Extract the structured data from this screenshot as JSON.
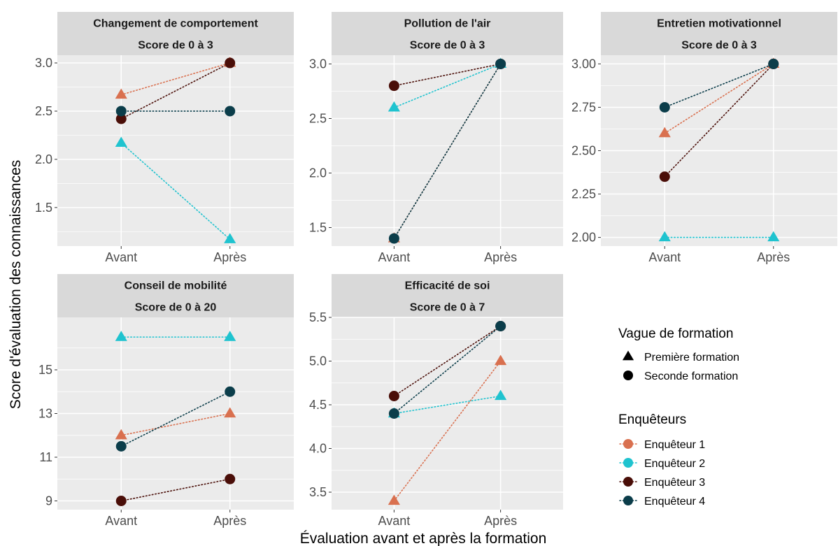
{
  "colors": {
    "Enquêteur 1": "#d9704f",
    "Enquêteur 2": "#1fc3cf",
    "Enquêteur 3": "#4a0e08",
    "Enquêteur 4": "#0b3d4a",
    "panel_background": "#ebebeb",
    "strip_background": "#d9d9d9",
    "grid": "#ffffff"
  },
  "chart_data": {
    "type": "line",
    "xlabel": "Évaluation avant et après la formation",
    "ylabel": "Score d'évaluation des connaissances",
    "categories": [
      "Avant",
      "Après"
    ],
    "grid": true,
    "legend_position": "right",
    "legends": [
      {
        "title": "Vague de formation",
        "items": [
          {
            "label": "Première formation",
            "shape": "triangle"
          },
          {
            "label": "Seconde formation",
            "shape": "circle"
          }
        ]
      },
      {
        "title": "Enquêteurs",
        "items": [
          {
            "label": "Enquêteur 1"
          },
          {
            "label": "Enquêteur 2"
          },
          {
            "label": "Enquêteur 3"
          },
          {
            "label": "Enquêteur 4"
          }
        ]
      }
    ],
    "panels": [
      {
        "title": "Changement de comportement",
        "subtitle": "Score de 0 à 3",
        "ylim": [
          1.1,
          3.08
        ],
        "yticks": [
          1.5,
          2.0,
          2.5,
          3.0
        ],
        "ytick_labels": [
          "1.5",
          "2.0",
          "2.5",
          "3.0"
        ],
        "series": [
          {
            "name": "Enquêteur 1",
            "shape": "triangle",
            "values": [
              2.67,
              3.0
            ]
          },
          {
            "name": "Enquêteur 2",
            "shape": "triangle",
            "values": [
              2.17,
              1.17
            ]
          },
          {
            "name": "Enquêteur 3",
            "shape": "circle",
            "values": [
              2.42,
              3.0
            ]
          },
          {
            "name": "Enquêteur 4",
            "shape": "circle",
            "values": [
              2.5,
              2.5
            ]
          }
        ]
      },
      {
        "title": "Pollution de l'air",
        "subtitle": "Score de 0 à 3",
        "ylim": [
          1.33,
          3.08
        ],
        "yticks": [
          1.5,
          2.0,
          2.5,
          3.0
        ],
        "ytick_labels": [
          "1.5",
          "2.0",
          "2.5",
          "3.0"
        ],
        "series": [
          {
            "name": "Enquêteur 1",
            "shape": "triangle",
            "values": [
              1.4,
              3.0
            ]
          },
          {
            "name": "Enquêteur 2",
            "shape": "triangle",
            "values": [
              2.6,
              3.0
            ]
          },
          {
            "name": "Enquêteur 3",
            "shape": "circle",
            "values": [
              2.8,
              3.0
            ]
          },
          {
            "name": "Enquêteur 4",
            "shape": "circle",
            "values": [
              1.4,
              3.0
            ]
          }
        ]
      },
      {
        "title": "Entretien motivationnel",
        "subtitle": "Score de 0 à 3",
        "ylim": [
          1.95,
          3.05
        ],
        "yticks": [
          2.0,
          2.25,
          2.5,
          2.75,
          3.0
        ],
        "ytick_labels": [
          "2.00",
          "2.25",
          "2.50",
          "2.75",
          "3.00"
        ],
        "series": [
          {
            "name": "Enquêteur 1",
            "shape": "triangle",
            "values": [
              2.6,
              3.0
            ]
          },
          {
            "name": "Enquêteur 2",
            "shape": "triangle",
            "values": [
              2.0,
              2.0
            ]
          },
          {
            "name": "Enquêteur 3",
            "shape": "circle",
            "values": [
              2.35,
              3.0
            ]
          },
          {
            "name": "Enquêteur 4",
            "shape": "circle",
            "values": [
              2.75,
              3.0
            ]
          }
        ]
      },
      {
        "title": "Conseil de mobilité",
        "subtitle": "Score de 0 à 20",
        "ylim": [
          8.6,
          17.4
        ],
        "yticks": [
          9,
          11,
          13,
          15
        ],
        "ytick_labels": [
          "9",
          "11",
          "13",
          "15"
        ],
        "series": [
          {
            "name": "Enquêteur 1",
            "shape": "triangle",
            "values": [
              12.0,
              13.0
            ]
          },
          {
            "name": "Enquêteur 2",
            "shape": "triangle",
            "values": [
              16.5,
              16.5
            ]
          },
          {
            "name": "Enquêteur 3",
            "shape": "circle",
            "values": [
              9.0,
              10.0
            ]
          },
          {
            "name": "Enquêteur 4",
            "shape": "circle",
            "values": [
              11.5,
              14.0
            ]
          }
        ]
      },
      {
        "title": "Efficacité de soi",
        "subtitle": "Score de 0 à 7",
        "ylim": [
          3.3,
          5.5
        ],
        "yticks": [
          3.5,
          4.0,
          4.5,
          5.0,
          5.5
        ],
        "ytick_labels": [
          "3.5",
          "4.0",
          "4.5",
          "5.0",
          "5.5"
        ],
        "series": [
          {
            "name": "Enquêteur 1",
            "shape": "triangle",
            "values": [
              3.4,
              5.0
            ]
          },
          {
            "name": "Enquêteur 2",
            "shape": "triangle",
            "values": [
              4.4,
              4.6
            ]
          },
          {
            "name": "Enquêteur 3",
            "shape": "circle",
            "values": [
              4.6,
              5.4
            ]
          },
          {
            "name": "Enquêteur 4",
            "shape": "circle",
            "values": [
              4.4,
              5.4
            ]
          }
        ]
      }
    ]
  }
}
